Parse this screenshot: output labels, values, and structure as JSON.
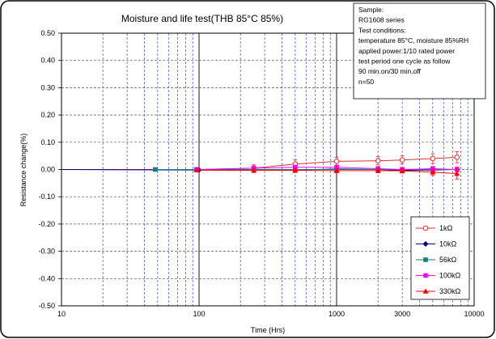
{
  "chart_data": {
    "type": "line",
    "title": "Moisture and life test(THB 85°C 85%)",
    "xlabel": "Time (Hrs)",
    "ylabel": "Resistance change(%)",
    "x_scale": "log",
    "xlim": [
      10,
      10000
    ],
    "ylim": [
      -0.5,
      0.5
    ],
    "x_ticks": [
      10,
      100,
      1000,
      3000,
      10000
    ],
    "x_tick_labels": [
      "10",
      "100",
      "1000",
      "3000",
      "10000"
    ],
    "y_ticks": [
      0.5,
      0.4,
      0.3,
      0.2,
      0.1,
      0.0,
      -0.1,
      -0.2,
      -0.3,
      -0.4,
      -0.5
    ],
    "y_tick_labels": [
      "0.50",
      "0.40",
      "0.30",
      "0.20",
      "0.10",
      "0.00",
      "-0.10",
      "-0.20",
      "-0.30",
      "-0.40",
      "-0.50"
    ],
    "grid": true,
    "legend_position": "bottom-right",
    "note": {
      "lines": [
        "Sample:",
        "RG1608 series",
        "Test conditions:",
        "temperature 85°C, moisture 85%RH",
        "applied power:1/10 rated power",
        "test period one cycle as follow",
        "90 min.on/30 min.off",
        "n=50"
      ]
    },
    "series": [
      {
        "name": "1kΩ",
        "color": "#e03030",
        "marker": "circle-open",
        "x": [
          0,
          96,
          250,
          500,
          1000,
          2000,
          3000,
          5000,
          7500
        ],
        "y": [
          0.0,
          0.0,
          0.005,
          0.02,
          0.03,
          0.032,
          0.035,
          0.04,
          0.045
        ],
        "err": [
          0,
          0,
          0.012,
          0.015,
          0.015,
          0.015,
          0.015,
          0.018,
          0.02
        ]
      },
      {
        "name": "10kΩ",
        "color": "#000080",
        "marker": "diamond",
        "x": [
          0,
          100,
          250,
          500,
          1000,
          2000,
          3000,
          5000,
          7500
        ],
        "y": [
          0.0,
          -0.002,
          -0.003,
          -0.002,
          0.002,
          0.0,
          -0.003,
          -0.002,
          0.0
        ],
        "err": [
          0,
          0,
          0.006,
          0.006,
          0.006,
          0.006,
          0.006,
          0.006,
          0.008
        ]
      },
      {
        "name": "56kΩ",
        "color": "#108080",
        "marker": "square",
        "x": [
          48,
          96,
          250,
          500,
          1000,
          2000,
          3000,
          5000,
          7500
        ],
        "y": [
          0.0,
          0.0,
          0.0,
          0.0,
          0.0,
          0.0,
          0.0,
          0.0,
          0.0
        ],
        "err": [
          0,
          0,
          0.005,
          0.005,
          0.005,
          0.005,
          0.005,
          0.005,
          0.006
        ]
      },
      {
        "name": "100kΩ",
        "color": "#ff00ff",
        "marker": "square",
        "x": [
          96,
          250,
          500,
          1000,
          2000,
          3000,
          5000,
          7500
        ],
        "y": [
          0.0,
          0.005,
          0.008,
          0.008,
          0.003,
          0.0,
          0.003,
          0.0
        ],
        "err": [
          0,
          0.008,
          0.008,
          0.008,
          0.008,
          0.008,
          0.008,
          0.008
        ]
      },
      {
        "name": "330kΩ",
        "color": "#ff0000",
        "marker": "triangle",
        "x": [
          96,
          250,
          500,
          1000,
          2000,
          3000,
          5000,
          7500
        ],
        "y": [
          -0.002,
          -0.003,
          -0.003,
          -0.004,
          -0.004,
          -0.005,
          -0.01,
          -0.015
        ],
        "err": [
          0,
          0.008,
          0.008,
          0.008,
          0.008,
          0.008,
          0.012,
          0.02
        ]
      }
    ]
  }
}
